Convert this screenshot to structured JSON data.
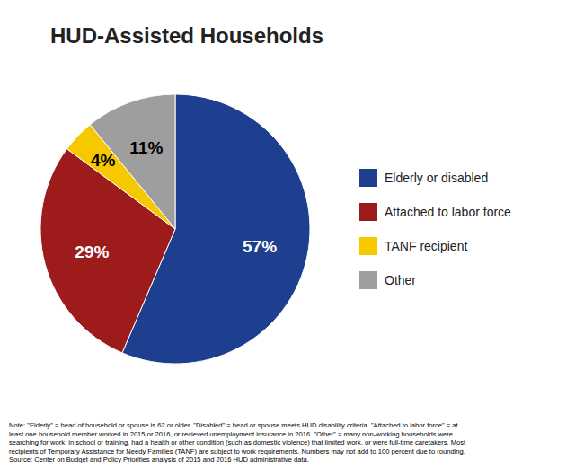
{
  "chart_data": {
    "type": "pie",
    "title": "HUD-Assisted Households",
    "categories": [
      "Elderly or disabled",
      "Attached to labor force",
      "TANF recipient",
      "Other"
    ],
    "values": [
      57,
      29,
      4,
      11
    ],
    "value_labels": [
      "57%",
      "29%",
      "4%",
      "11%"
    ],
    "colors": [
      "#1e3f8f",
      "#9e1b1b",
      "#f5c800",
      "#9e9e9e"
    ],
    "data_labels": true,
    "legend": "right",
    "annotations": [
      "Note: \"Elderly\" = head of household or spouse is 62 or older. \"Disabled\" = head or spouse meets HUD disability criteria. \"Attached to labor force\" = at\nleast one household member worked in 2015 or 2016, or recieved unemployment insurance in 2016.  \"Other\" = many non-working households were\nsearching for work, in school or training, had a health or other condition (such as domestic violence) that limited work, or were full-time caretakers. Most\nrecipients of Temporary Assistance for Needy Families (TANF) are subject to work requirements. Numbers may not add to 100 percent due to rounding.\nSource: Center on Budget and Policy Priorities analysis of 2015 and 2016 HUD administrative data."
    ]
  }
}
